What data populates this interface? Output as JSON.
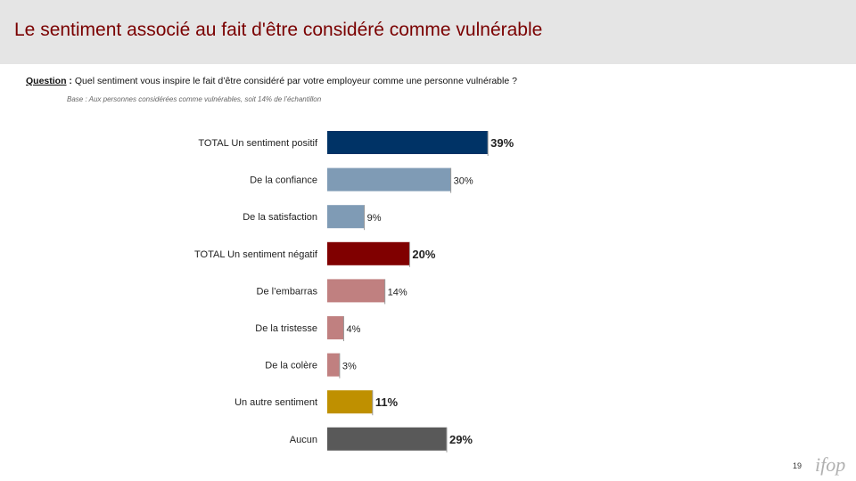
{
  "slide": {
    "title": "Le sentiment associé au fait d'être considéré comme vulnérable",
    "question_label": "Question",
    "question_colon": " :",
    "question_text": " Quel sentiment vous inspire le fait d’être considéré par votre employeur comme une personne vulnérable ?",
    "base_text": "Base : Aux personnes considérées comme vulnérables, soit 14% de l’échantillon",
    "page_number": "19",
    "logo_text": "ifop"
  },
  "chart_data": {
    "type": "bar",
    "orientation": "horizontal",
    "title": "",
    "xlim": [
      0,
      100
    ],
    "grid": false,
    "legend": "none",
    "categories": [
      "TOTAL Un sentiment positif",
      "De la confiance",
      "De la satisfaction",
      "TOTAL Un sentiment négatif",
      "De l’embarras",
      "De la tristesse",
      "De la colère",
      "Un autre sentiment",
      "Aucun"
    ],
    "values": [
      39,
      30,
      9,
      20,
      14,
      4,
      3,
      11,
      29
    ],
    "value_labels": [
      "39%",
      "30%",
      "9%",
      "20%",
      "14%",
      "4%",
      "3%",
      "11%",
      "29%"
    ],
    "is_total": [
      true,
      false,
      false,
      true,
      false,
      false,
      false,
      true,
      true
    ],
    "colors": [
      "#003366",
      "#7f9bb5",
      "#7f9bb5",
      "#800000",
      "#c08080",
      "#c08080",
      "#c08080",
      "#bf9000",
      "#595959"
    ],
    "label_colors": [
      "#003366",
      "#222222",
      "#222222",
      "#800000",
      "#222222",
      "#222222",
      "#222222",
      "#bf9000",
      "#595959"
    ]
  },
  "colors": {
    "title": "#7a0000",
    "header_bg": "#e5e5e5"
  }
}
